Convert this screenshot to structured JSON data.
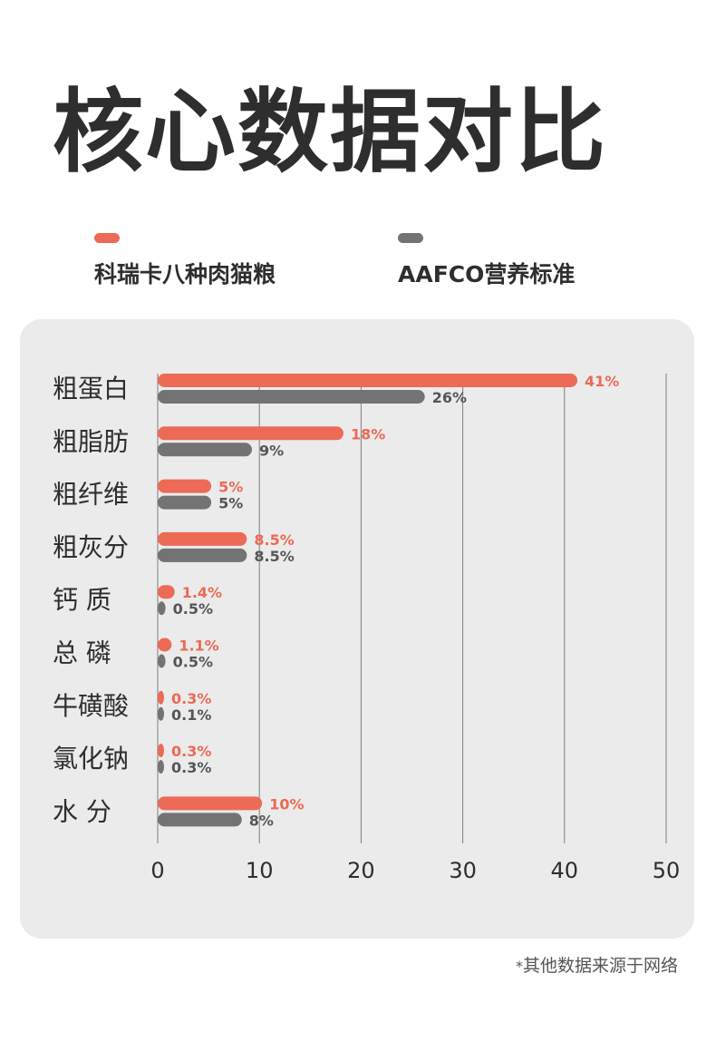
{
  "title": "核心数据对比",
  "legend": [
    {
      "label": "科瑞卡八种肉猫粮",
      "color": "#ec6a56"
    },
    {
      "label": "AAFCO营养标准",
      "color": "#737373"
    }
  ],
  "footnote": {
    "star": "*",
    "text": "其他数据来源于网络"
  },
  "colors": {
    "panel": "#ebebeb",
    "grid": "#7d7d7d",
    "label_a": "#ec6a56",
    "label_b": "#555555"
  },
  "chart_data": {
    "type": "bar",
    "orientation": "horizontal",
    "categories": [
      "粗蛋白",
      "粗脂肪",
      "粗纤维",
      "粗灰分",
      "钙  质",
      "总  磷",
      "牛磺酸",
      "氯化钠",
      "水  分"
    ],
    "series": [
      {
        "name": "科瑞卡八种肉猫粮",
        "values": [
          41,
          18,
          5,
          8.5,
          1.4,
          1.1,
          0.3,
          0.3,
          10
        ],
        "labels": [
          "41%",
          "18%",
          "5%",
          "8.5%",
          "1.4%",
          "1.1%",
          "0.3%",
          "0.3%",
          "10%"
        ]
      },
      {
        "name": "AAFCO营养标准",
        "values": [
          26,
          9,
          5,
          8.5,
          0.5,
          0.5,
          0.1,
          0.3,
          8
        ],
        "labels": [
          "26%",
          "9%",
          "5%",
          "8.5%",
          "0.5%",
          "0.5%",
          "0.1%",
          "0.3%",
          "8%"
        ]
      }
    ],
    "xticks": [
      0,
      10,
      20,
      30,
      40,
      50
    ],
    "xlim": [
      0,
      50
    ],
    "grid": true,
    "legend_position": "top"
  }
}
